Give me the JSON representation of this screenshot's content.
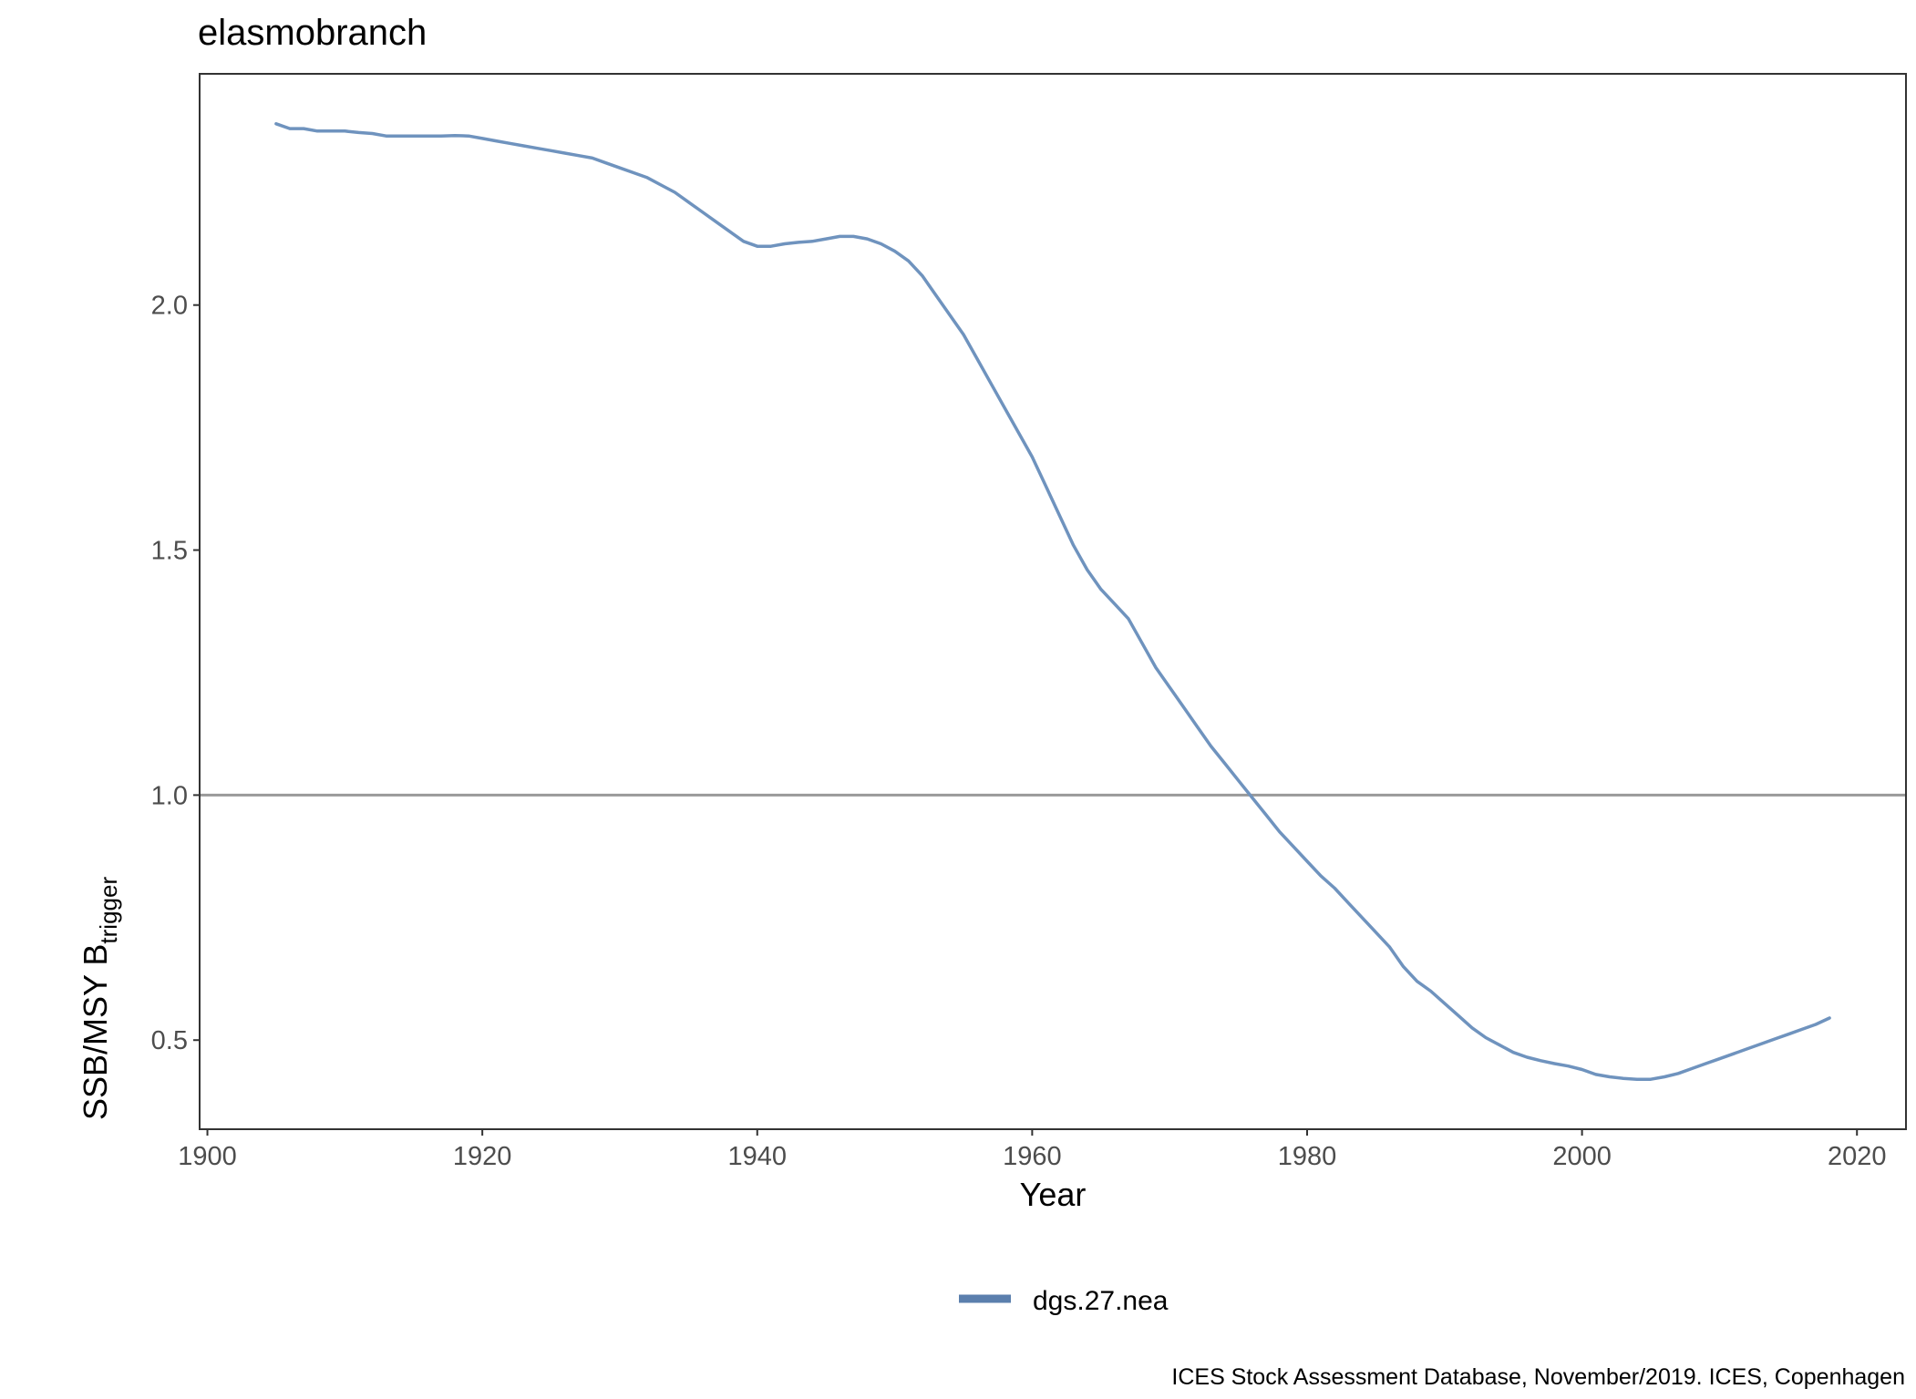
{
  "chart_data": {
    "type": "line",
    "title": "elasmobranch",
    "xlabel": "Year",
    "ylabel": {
      "main": "SSB/MSY B",
      "subscript": "trigger"
    },
    "xlim": [
      1899.5,
      2023.5
    ],
    "ylim": [
      0.32,
      2.47
    ],
    "x_ticks": [
      1900,
      1920,
      1940,
      1960,
      1980,
      2000,
      2020
    ],
    "x_tick_labels": [
      "1900",
      "1920",
      "1940",
      "1960",
      "1980",
      "2000",
      "2020"
    ],
    "y_ticks": [
      0.5,
      1.0,
      1.5,
      2.0
    ],
    "y_tick_labels": [
      "0.5",
      "1.0",
      "1.5",
      "2.0"
    ],
    "grid": false,
    "reference_line": {
      "y": 1.0,
      "color": "#999999"
    },
    "legend": {
      "position": "bottom"
    },
    "series": [
      {
        "name": "dgs.27.nea",
        "color": "#6f93be",
        "legend_color": "#5b7fad",
        "x": [
          1905,
          1906,
          1907,
          1908,
          1909,
          1910,
          1911,
          1912,
          1913,
          1914,
          1915,
          1916,
          1917,
          1918,
          1919,
          1920,
          1921,
          1922,
          1923,
          1924,
          1925,
          1926,
          1927,
          1928,
          1929,
          1930,
          1931,
          1932,
          1933,
          1934,
          1935,
          1936,
          1937,
          1938,
          1939,
          1940,
          1941,
          1942,
          1943,
          1944,
          1945,
          1946,
          1947,
          1948,
          1949,
          1950,
          1951,
          1952,
          1953,
          1954,
          1955,
          1956,
          1957,
          1958,
          1959,
          1960,
          1961,
          1962,
          1963,
          1964,
          1965,
          1966,
          1967,
          1968,
          1969,
          1970,
          1971,
          1972,
          1973,
          1974,
          1975,
          1976,
          1977,
          1978,
          1979,
          1980,
          1981,
          1982,
          1983,
          1984,
          1985,
          1986,
          1987,
          1988,
          1989,
          1990,
          1991,
          1992,
          1993,
          1994,
          1995,
          1996,
          1997,
          1998,
          1999,
          2000,
          2001,
          2002,
          2003,
          2004,
          2005,
          2006,
          2007,
          2008,
          2009,
          2010,
          2011,
          2012,
          2013,
          2014,
          2015,
          2016,
          2017,
          2018
        ],
        "y": [
          2.37,
          2.36,
          2.36,
          2.355,
          2.355,
          2.355,
          2.352,
          2.35,
          2.345,
          2.345,
          2.345,
          2.345,
          2.345,
          2.346,
          2.345,
          2.34,
          2.335,
          2.33,
          2.325,
          2.32,
          2.315,
          2.31,
          2.305,
          2.3,
          2.29,
          2.28,
          2.27,
          2.26,
          2.245,
          2.23,
          2.21,
          2.19,
          2.17,
          2.15,
          2.13,
          2.12,
          2.12,
          2.125,
          2.128,
          2.13,
          2.135,
          2.14,
          2.14,
          2.135,
          2.125,
          2.11,
          2.09,
          2.06,
          2.02,
          1.98,
          1.94,
          1.89,
          1.84,
          1.79,
          1.74,
          1.69,
          1.63,
          1.57,
          1.51,
          1.46,
          1.42,
          1.39,
          1.36,
          1.31,
          1.26,
          1.22,
          1.18,
          1.14,
          1.1,
          1.065,
          1.03,
          0.995,
          0.96,
          0.925,
          0.895,
          0.865,
          0.835,
          0.81,
          0.78,
          0.75,
          0.72,
          0.69,
          0.65,
          0.62,
          0.6,
          0.575,
          0.55,
          0.525,
          0.505,
          0.49,
          0.475,
          0.465,
          0.458,
          0.452,
          0.447,
          0.44,
          0.43,
          0.425,
          0.422,
          0.42,
          0.42,
          0.425,
          0.432,
          0.442,
          0.452,
          0.462,
          0.472,
          0.482,
          0.492,
          0.502,
          0.512,
          0.522,
          0.532,
          0.545
        ]
      }
    ],
    "caption": "ICES Stock Assessment Database, November/2019. ICES, Copenhagen"
  }
}
